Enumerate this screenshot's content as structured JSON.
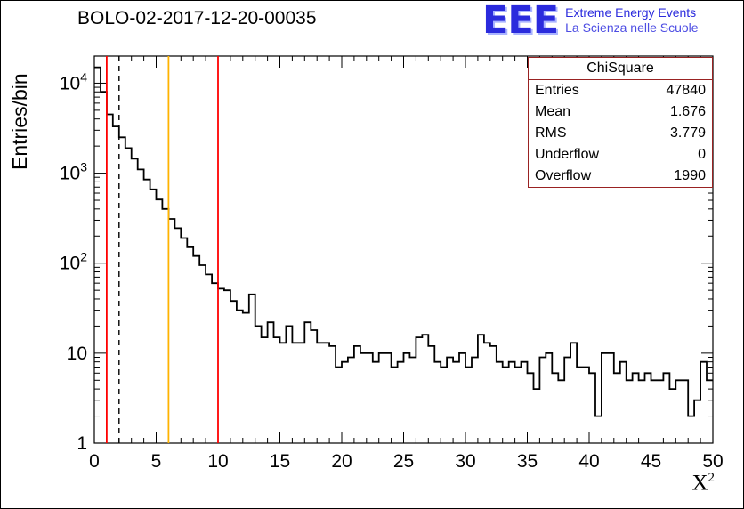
{
  "title": "BOLO-02-2017-12-20-00035",
  "logo": {
    "eee": "EEE",
    "line1": "Extreme Energy Events",
    "line2": "La Scienza nelle Scuole",
    "color_primary": "#2b2bdd",
    "color_secondary": "#4d4de3"
  },
  "axes": {
    "y_title": "Entries/bin",
    "x_title_base": "X",
    "x_title_exp": "2"
  },
  "stats": {
    "title": "ChiSquare",
    "border_color": "#992222",
    "rows": [
      {
        "label": "Entries",
        "value": "47840"
      },
      {
        "label": "Mean",
        "value": "1.676"
      },
      {
        "label": "RMS",
        "value": "3.779"
      },
      {
        "label": "Underflow",
        "value": "0"
      },
      {
        "label": "Overflow",
        "value": "1990"
      }
    ]
  },
  "chart_data": {
    "type": "bar",
    "subtype": "histogram-step",
    "title": "BOLO-02-2017-12-20-00035",
    "xlabel": "X^2",
    "ylabel": "Entries/bin",
    "xlim": [
      0,
      50
    ],
    "ylim": [
      1,
      20000
    ],
    "yscale": "log",
    "grid": false,
    "legend": "none",
    "line_color": "#000000",
    "bin_start": 0,
    "bin_width": 0.5,
    "values": [
      15000,
      8000,
      4500,
      3300,
      2500,
      1900,
      1450,
      1100,
      850,
      660,
      510,
      400,
      310,
      245,
      190,
      150,
      120,
      95,
      75,
      60,
      52,
      50,
      38,
      30,
      28,
      45,
      20,
      15,
      22,
      15,
      13,
      20,
      13,
      13,
      22,
      18,
      13,
      13,
      12,
      7,
      8,
      9,
      12,
      10,
      10,
      8,
      10,
      10,
      7,
      8,
      10,
      9,
      15,
      16,
      12,
      8,
      7,
      9,
      8,
      10,
      7,
      9,
      16,
      13,
      12,
      8,
      7,
      8,
      7,
      8,
      6,
      4,
      9,
      10,
      6,
      5,
      9,
      13,
      7,
      7,
      6,
      2,
      10,
      10,
      6,
      8,
      5,
      6,
      5,
      6,
      5,
      5,
      6,
      4,
      5,
      5,
      2,
      3,
      8,
      5
    ],
    "x_ticks": [
      0,
      5,
      10,
      15,
      20,
      25,
      30,
      35,
      40,
      45,
      50
    ],
    "y_tick_labels": [
      "1",
      "10",
      "10^2",
      "10^3",
      "10^4"
    ],
    "vlines": [
      {
        "x": 1,
        "color": "#ff0000",
        "style": "solid"
      },
      {
        "x": 2,
        "color": "#000000",
        "style": "dashed"
      },
      {
        "x": 6,
        "color": "#ffb300",
        "style": "solid"
      },
      {
        "x": 10,
        "color": "#ff0000",
        "style": "solid"
      }
    ]
  }
}
